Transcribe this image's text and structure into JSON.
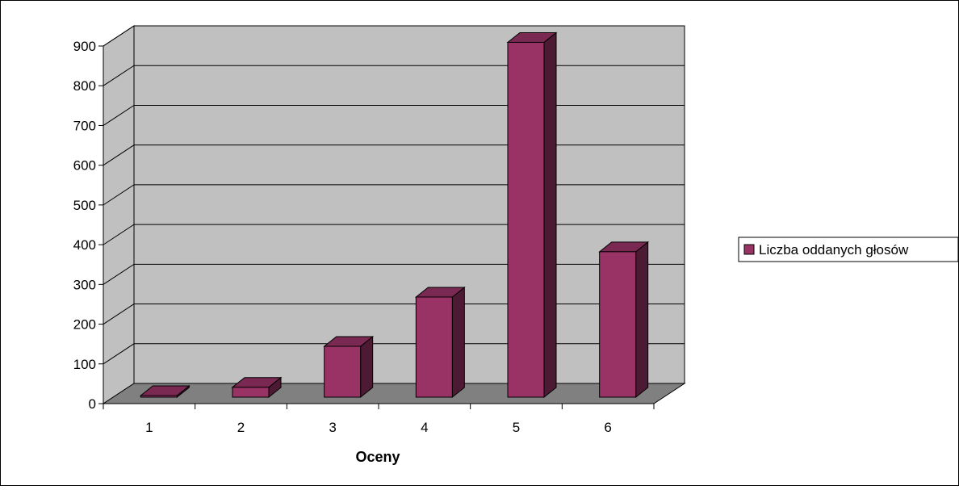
{
  "chart_data": {
    "type": "bar",
    "style": "3d-column",
    "title": "",
    "xlabel": "Oceny",
    "ylabel": "",
    "categories": [
      "1",
      "2",
      "3",
      "4",
      "5",
      "6"
    ],
    "series": [
      {
        "name": "Liczba oddanych głosów",
        "values": [
          3,
          25,
          128,
          252,
          893,
          366
        ]
      }
    ],
    "ylim": [
      0,
      900
    ],
    "yticks": [
      "0",
      "100",
      "200",
      "300",
      "400",
      "500",
      "600",
      "700",
      "800",
      "900"
    ],
    "grid": true,
    "legend": "right",
    "colors": {
      "bar_front": "#993366",
      "bar_side": "#4d1a33",
      "bar_top": "#7a2952",
      "wall": "#c0c0c0",
      "floor": "#808080",
      "border": "#000000"
    }
  }
}
